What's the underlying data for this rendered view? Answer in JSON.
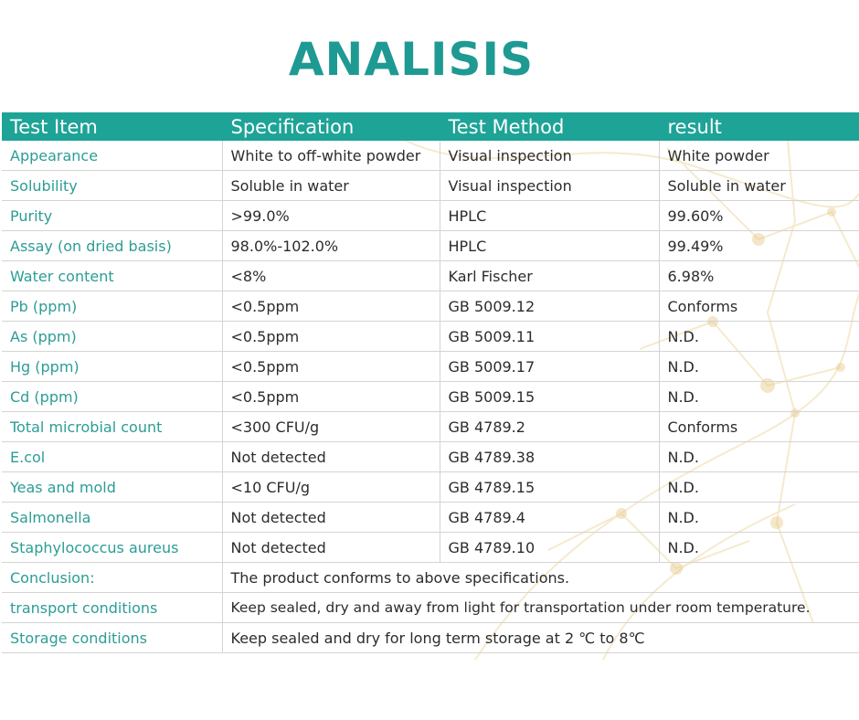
{
  "title": "ANALISIS",
  "table": {
    "headers": [
      "Test Item",
      "Specification",
      "Test Method",
      "result"
    ],
    "rows": [
      [
        "Appearance",
        "White to off-white powder",
        "Visual inspection",
        "White powder"
      ],
      [
        "Solubility",
        "Soluble in water",
        "Visual inspection",
        "Soluble in water"
      ],
      [
        "Purity",
        ">99.0%",
        "HPLC",
        "99.60%"
      ],
      [
        "Assay (on dried basis)",
        "98.0%-102.0%",
        "HPLC",
        "99.49%"
      ],
      [
        "Water content",
        "<8%",
        "Karl Fischer",
        "6.98%"
      ],
      [
        "Pb (ppm)",
        "<0.5ppm",
        "GB 5009.12",
        "Conforms"
      ],
      [
        "As (ppm)",
        "<0.5ppm",
        "GB 5009.11",
        "N.D."
      ],
      [
        "Hg (ppm)",
        "<0.5ppm",
        "GB 5009.17",
        "N.D."
      ],
      [
        "Cd (ppm)",
        "<0.5ppm",
        "GB 5009.15",
        "N.D."
      ],
      [
        "Total microbial count",
        "<300 CFU/g",
        "GB 4789.2",
        "Conforms"
      ],
      [
        "E.col",
        "Not detected",
        "GB 4789.38",
        "N.D."
      ],
      [
        "Yeas and mold",
        "<10 CFU/g",
        "GB 4789.15",
        "N.D."
      ],
      [
        "Salmonella",
        "Not detected",
        "GB 4789.4",
        "N.D."
      ],
      [
        "Staphylococcus aureus",
        "Not detected",
        "GB 4789.10",
        "N.D."
      ]
    ],
    "notes": [
      [
        "Conclusion:",
        "The product conforms to above specifications."
      ],
      [
        "transport conditions",
        "Keep sealed, dry and away from light for transportation under room temperature."
      ],
      [
        "Storage conditions",
        "Keep sealed and dry for long term storage at 2 ℃ to  8℃"
      ]
    ]
  },
  "colors": {
    "accent": "#1ea397",
    "title": "#1e9a93",
    "item_text": "#2c9d95",
    "decoration": "#e6c98a"
  },
  "decoration": "molecular-network-watermark"
}
